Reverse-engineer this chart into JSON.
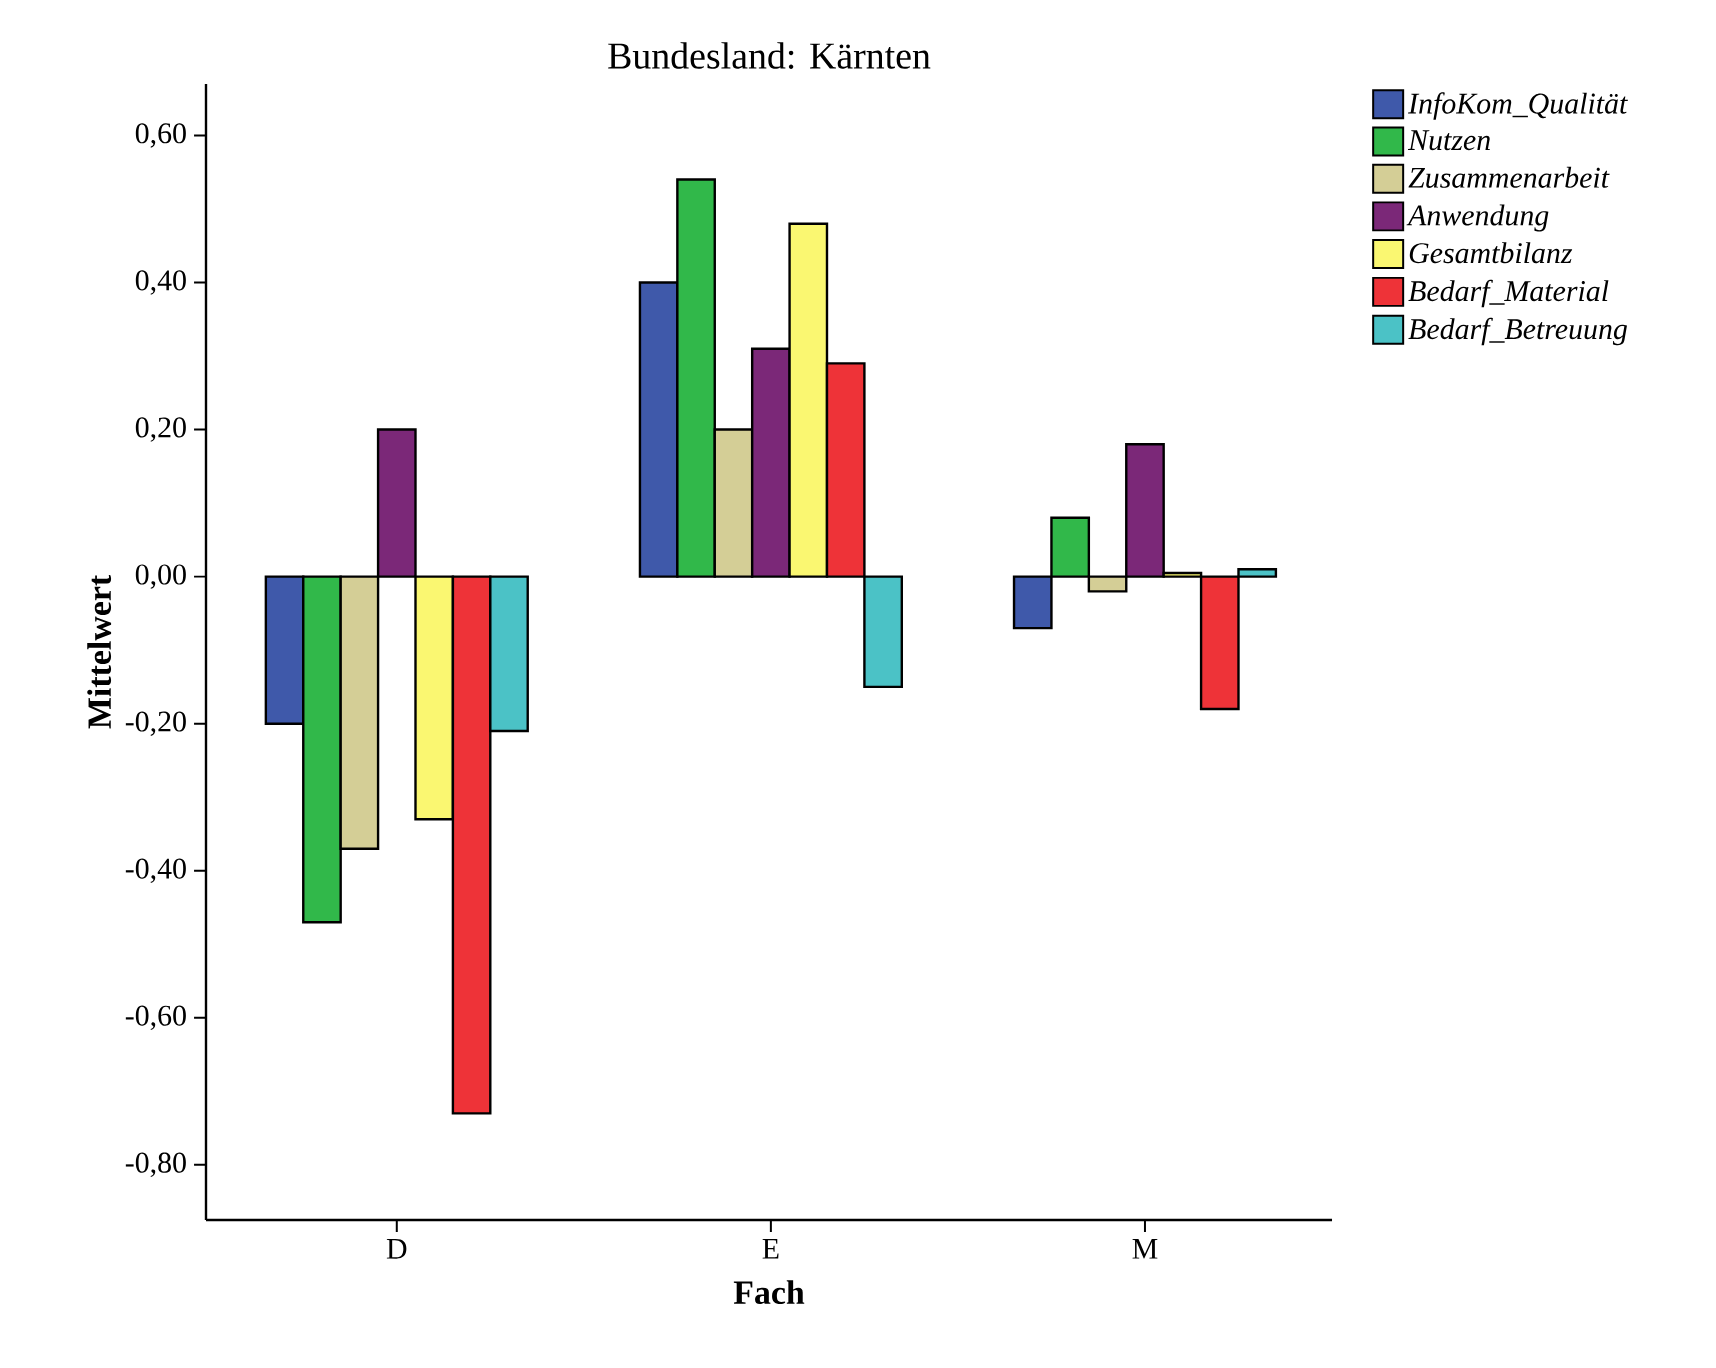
{
  "chart_data": {
    "type": "bar",
    "title": "Bundesland: Kärnten",
    "xlabel": "Fach",
    "ylabel": "Mittelwert",
    "categories": [
      "D",
      "E",
      "M"
    ],
    "series": [
      {
        "name": "InfoKom_Qualität",
        "color": "#3f59aa",
        "values": [
          -0.2,
          0.4,
          -0.07
        ]
      },
      {
        "name": "Nutzen",
        "color": "#31b84a",
        "values": [
          -0.47,
          0.54,
          0.08
        ]
      },
      {
        "name": "Zusammenarbeit",
        "color": "#d4ce96",
        "values": [
          -0.37,
          0.2,
          -0.02
        ]
      },
      {
        "name": "Anwendung",
        "color": "#7b2878",
        "values": [
          0.2,
          0.31,
          0.18
        ]
      },
      {
        "name": "Gesamtbilanz",
        "color": "#faf771",
        "values": [
          -0.33,
          0.48,
          0.005
        ]
      },
      {
        "name": "Bedarf_Material",
        "color": "#ee3338",
        "values": [
          -0.73,
          0.29,
          -0.18
        ]
      },
      {
        "name": "Bedarf_Betreuung",
        "color": "#4bc2c6",
        "values": [
          -0.21,
          -0.15,
          0.01
        ]
      }
    ],
    "ylim": [
      -0.875,
      0.67
    ],
    "yticks": [
      {
        "value": -0.8,
        "label": "-0,80"
      },
      {
        "value": -0.6,
        "label": "-0,60"
      },
      {
        "value": -0.4,
        "label": "-0,40"
      },
      {
        "value": -0.2,
        "label": "-0,20"
      },
      {
        "value": 0.0,
        "label": "0,00"
      },
      {
        "value": 0.2,
        "label": "0,20"
      },
      {
        "value": 0.4,
        "label": "0,40"
      },
      {
        "value": 0.6,
        "label": "0,60"
      }
    ],
    "legend": "top right",
    "grid": false
  }
}
